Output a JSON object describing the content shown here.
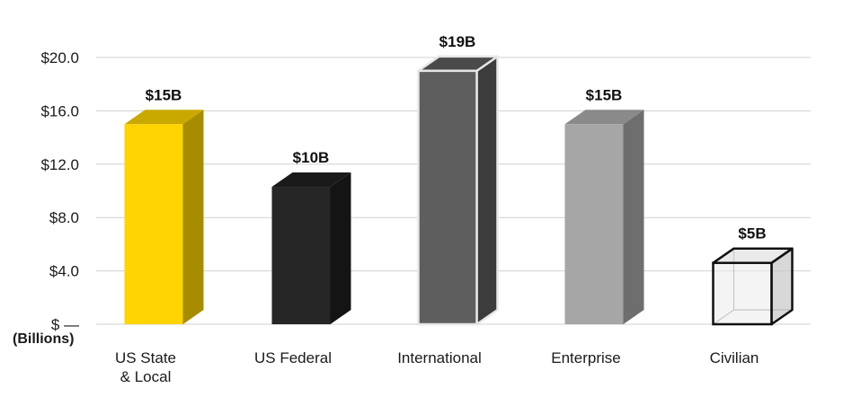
{
  "chart_data": {
    "type": "bar",
    "title": "",
    "xlabel": "",
    "ylabel": "(Billions)",
    "ylim": [
      0,
      20
    ],
    "y_ticks": [
      {
        "value": 0,
        "label": "$ —"
      },
      {
        "value": 4,
        "label": "$4.0"
      },
      {
        "value": 8,
        "label": "$8.0"
      },
      {
        "value": 12,
        "label": "$12.0"
      },
      {
        "value": 16,
        "label": "$16.0"
      },
      {
        "value": 20,
        "label": "$20.0"
      }
    ],
    "grid": true,
    "bars": [
      {
        "category": [
          "US State",
          "& Local"
        ],
        "value": 15,
        "data_label": "$15B",
        "front": "#FFD400",
        "top": "#C9A800",
        "side": "#A88C00",
        "stroke": "none"
      },
      {
        "category": [
          "US Federal"
        ],
        "value": 10.3,
        "data_label": "$10B",
        "front": "#262626",
        "top": "#1a1a1a",
        "side": "#141414",
        "stroke": "none"
      },
      {
        "category": [
          "International"
        ],
        "value": 19,
        "data_label": "$19B",
        "front": "#5e5e5e",
        "top": "#4a4a4a",
        "side": "#3c3c3c",
        "stroke": "#e6e6e6"
      },
      {
        "category": [
          "Enterprise"
        ],
        "value": 15,
        "data_label": "$15B",
        "front": "#a6a6a6",
        "top": "#8a8a8a",
        "side": "#6e6e6e",
        "stroke": "none"
      },
      {
        "category": [
          "Civilian"
        ],
        "value": 4.6,
        "data_label": "$5B",
        "front": "rgba(235,235,235,0.55)",
        "top": "rgba(225,225,225,0.7)",
        "side": "rgba(200,200,200,0.7)",
        "stroke": "#111111",
        "wireframe": true
      }
    ]
  }
}
